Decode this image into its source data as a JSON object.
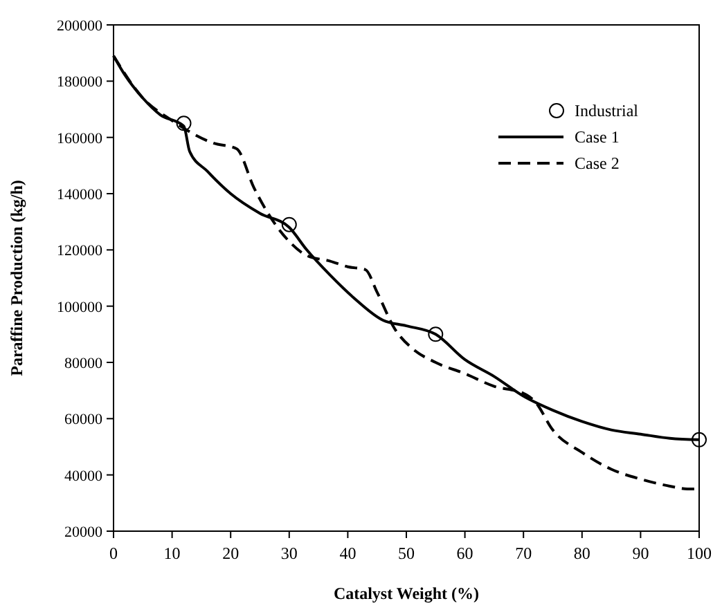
{
  "chart_data": {
    "type": "line",
    "xlabel": "Catalyst Weight (%)",
    "ylabel": "Paraffine Production (kg/h)",
    "xlim": [
      0,
      100
    ],
    "ylim": [
      20000,
      200000
    ],
    "xticks": [
      0,
      10,
      20,
      30,
      40,
      50,
      60,
      70,
      80,
      90,
      100
    ],
    "yticks": [
      20000,
      40000,
      60000,
      80000,
      100000,
      120000,
      140000,
      160000,
      180000,
      200000
    ],
    "legend": "top right",
    "grid": false,
    "series": [
      {
        "name": "Industrial",
        "type": "scatter",
        "marker": "circle",
        "color": "#000000",
        "x": [
          12,
          30,
          55,
          100
        ],
        "values": [
          165000,
          129000,
          90000,
          52500
        ]
      },
      {
        "name": "Case 1",
        "line_style": "solid",
        "color": "#000000",
        "x": [
          0,
          2,
          5,
          8,
          12,
          13,
          16,
          20,
          25,
          30,
          33,
          37,
          41,
          46,
          50,
          55,
          60,
          65,
          70,
          75,
          80,
          85,
          90,
          95,
          100
        ],
        "values": [
          189000,
          182000,
          174000,
          168000,
          164000,
          155000,
          148000,
          140000,
          133000,
          128000,
          120000,
          111000,
          103000,
          95000,
          93000,
          90000,
          81000,
          75000,
          68000,
          63000,
          59000,
          56000,
          54500,
          53000,
          52500
        ]
      },
      {
        "name": "Case 2",
        "line_style": "dashed",
        "color": "#000000",
        "x": [
          0,
          5,
          10,
          13,
          17,
          21,
          24,
          28,
          30,
          33,
          37,
          40,
          43,
          45,
          48,
          51,
          55,
          60,
          65,
          70,
          72,
          75,
          80,
          85,
          90,
          95,
          98,
          100
        ],
        "values": [
          189000,
          174000,
          166000,
          162000,
          158000,
          156000,
          142000,
          128000,
          123000,
          118000,
          116000,
          114000,
          113000,
          105000,
          92000,
          85000,
          80000,
          76000,
          71500,
          69000,
          66000,
          56000,
          48000,
          42000,
          38500,
          36000,
          35000,
          35000
        ]
      }
    ]
  }
}
